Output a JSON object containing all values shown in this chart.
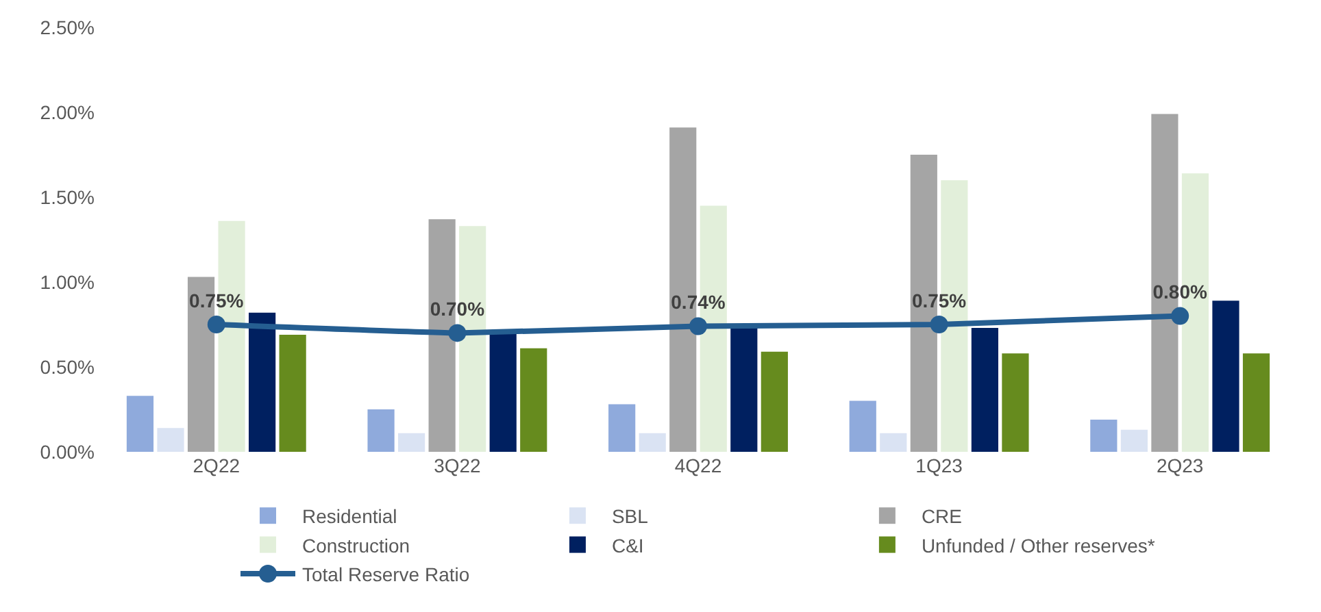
{
  "chart_data": {
    "type": "bar",
    "categories": [
      "2Q22",
      "3Q22",
      "4Q22",
      "1Q23",
      "2Q23"
    ],
    "series": [
      {
        "name": "Residential",
        "color": "#8faadc",
        "values": [
          0.33,
          0.25,
          0.28,
          0.3,
          0.19
        ]
      },
      {
        "name": "SBL",
        "color": "#dae3f3",
        "values": [
          0.14,
          0.11,
          0.11,
          0.11,
          0.13
        ]
      },
      {
        "name": "CRE",
        "color": "#a5a5a5",
        "values": [
          1.03,
          1.37,
          1.91,
          1.75,
          1.99
        ]
      },
      {
        "name": "Construction",
        "color": "#e2efda",
        "values": [
          1.36,
          1.33,
          1.45,
          1.6,
          1.64
        ]
      },
      {
        "name": "C&I",
        "color": "#002060",
        "values": [
          0.82,
          0.7,
          0.74,
          0.73,
          0.89
        ]
      },
      {
        "name": "Unfunded / Other reserves*",
        "color": "#668b1e",
        "values": [
          0.69,
          0.61,
          0.59,
          0.58,
          0.58
        ]
      },
      {
        "name": "Total Reserve Ratio",
        "type": "line",
        "color": "#255e91",
        "values": [
          0.75,
          0.7,
          0.74,
          0.75,
          0.8
        ],
        "value_labels": [
          "0.75%",
          "0.70%",
          "0.74%",
          "0.75%",
          "0.80%"
        ]
      }
    ],
    "ylim": [
      0,
      2.5
    ],
    "yticks": [
      {
        "value": 0,
        "label": "0.00%"
      },
      {
        "value": 0.5,
        "label": "0.50%"
      },
      {
        "value": 1.0,
        "label": "1.00%"
      },
      {
        "value": 1.5,
        "label": "1.50%"
      },
      {
        "value": 2.0,
        "label": "2.00%"
      },
      {
        "value": 2.5,
        "label": "2.50%"
      }
    ],
    "grid": false,
    "legend": "bottom",
    "marker": "circle",
    "line_style": "solid"
  }
}
